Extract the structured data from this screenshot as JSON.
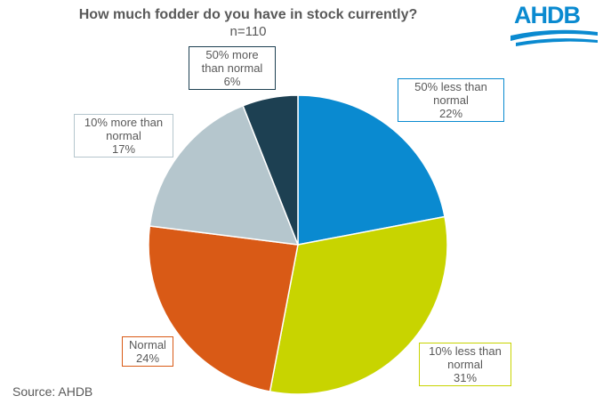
{
  "chart_data": {
    "type": "pie",
    "title": "How much fodder do you have in stock currently?",
    "subtitle": "n=110",
    "categories": [
      "50% less than normal",
      "10% less than normal",
      "Normal",
      "10% more than normal",
      "50% more than normal"
    ],
    "values": [
      22,
      31,
      24,
      17,
      6
    ],
    "value_labels": [
      "22%",
      "31%",
      "24%",
      "17%",
      "6%"
    ],
    "colors": [
      "#0a8ad0",
      "#c8d400",
      "#d95a16",
      "#b5c6cd",
      "#1d4052"
    ],
    "source": "Source:  AHDB",
    "logo": "AHDB"
  }
}
